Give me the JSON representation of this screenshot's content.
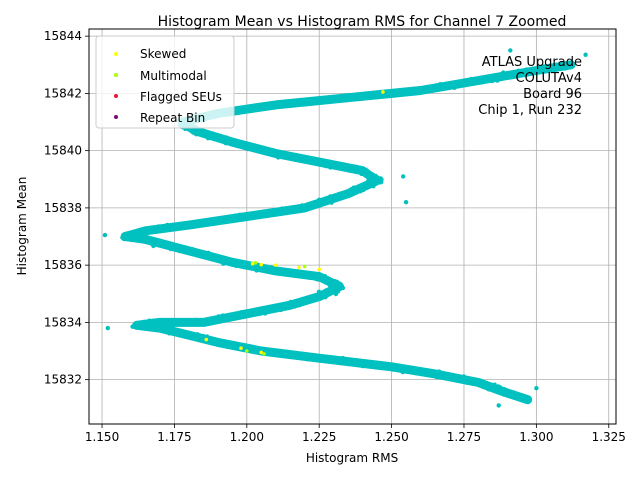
{
  "chart_data": {
    "type": "scatter",
    "title": "Histogram Mean vs Histogram RMS for Channel 7 Zoomed",
    "xlabel": "Histogram RMS",
    "ylabel": "Histogram Mean",
    "xlim": [
      1.1455,
      1.3275
    ],
    "ylim": [
      15830.45,
      15844.25
    ],
    "xticks": [
      1.15,
      1.175,
      1.2,
      1.225,
      1.25,
      1.275,
      1.3,
      1.325
    ],
    "xtick_labels": [
      "1.150",
      "1.175",
      "1.200",
      "1.225",
      "1.250",
      "1.275",
      "1.300",
      "1.325"
    ],
    "yticks": [
      15832,
      15834,
      15836,
      15838,
      15840,
      15842,
      15844
    ],
    "ytick_labels": [
      "15832",
      "15834",
      "15836",
      "15838",
      "15840",
      "15842",
      "15844"
    ],
    "grid": true,
    "legend_position": "top-left",
    "legend": [
      {
        "label": "Skewed",
        "color": "#ffff00"
      },
      {
        "label": "Multimodal",
        "color": "#aaff00"
      },
      {
        "label": "Flagged SEUs",
        "color": "#e8192c"
      },
      {
        "label": "Repeat Bin",
        "color": "#7a0a7a"
      }
    ],
    "annotation_lines": [
      "ATLAS Upgrade",
      "COLUTAv4",
      "Board 96",
      "Chip 1, Run 232"
    ],
    "main_color": "#00c0c0",
    "trace": [
      [
        1.297,
        15831.3
      ],
      [
        1.288,
        15831.6
      ],
      [
        1.28,
        15831.9
      ],
      [
        1.265,
        15832.2
      ],
      [
        1.25,
        15832.45
      ],
      [
        1.225,
        15832.75
      ],
      [
        1.205,
        15833.0
      ],
      [
        1.19,
        15833.3
      ],
      [
        1.178,
        15833.6
      ],
      [
        1.17,
        15833.8
      ],
      [
        1.162,
        15833.9
      ],
      [
        1.17,
        15834.0
      ],
      [
        1.185,
        15834.0
      ],
      [
        1.2,
        15834.3
      ],
      [
        1.215,
        15834.6
      ],
      [
        1.225,
        15834.9
      ],
      [
        1.232,
        15835.25
      ],
      [
        1.225,
        15835.6
      ],
      [
        1.21,
        15835.8
      ],
      [
        1.195,
        15836.1
      ],
      [
        1.18,
        15836.5
      ],
      [
        1.165,
        15836.9
      ],
      [
        1.158,
        15837.0
      ],
      [
        1.165,
        15837.2
      ],
      [
        1.18,
        15837.4
      ],
      [
        1.2,
        15837.7
      ],
      [
        1.22,
        15838.0
      ],
      [
        1.235,
        15838.5
      ],
      [
        1.245,
        15838.95
      ],
      [
        1.24,
        15839.3
      ],
      [
        1.225,
        15839.6
      ],
      [
        1.21,
        15839.9
      ],
      [
        1.195,
        15840.3
      ],
      [
        1.182,
        15840.7
      ],
      [
        1.178,
        15841.0
      ],
      [
        1.19,
        15841.3
      ],
      [
        1.21,
        15841.6
      ],
      [
        1.235,
        15841.85
      ],
      [
        1.26,
        15842.1
      ],
      [
        1.28,
        15842.45
      ],
      [
        1.3,
        15842.8
      ],
      [
        1.312,
        15843.0
      ]
    ],
    "series": [
      {
        "name": "Skewed",
        "points": [
          [
            1.247,
            15842.05
          ],
          [
            1.202,
            15836.05
          ],
          [
            1.205,
            15836.02
          ],
          [
            1.21,
            15836.0
          ],
          [
            1.218,
            15835.92
          ],
          [
            1.225,
            15835.85
          ],
          [
            1.186,
            15833.4
          ],
          [
            1.198,
            15833.1
          ],
          [
            1.205,
            15832.95
          ]
        ]
      },
      {
        "name": "Multimodal",
        "points": [
          [
            1.203,
            15836.08
          ],
          [
            1.22,
            15835.95
          ],
          [
            1.2,
            15833.0
          ],
          [
            1.206,
            15832.9
          ]
        ]
      },
      {
        "name": "Flagged SEUs",
        "points": []
      },
      {
        "name": "Repeat Bin",
        "points": []
      }
    ]
  }
}
